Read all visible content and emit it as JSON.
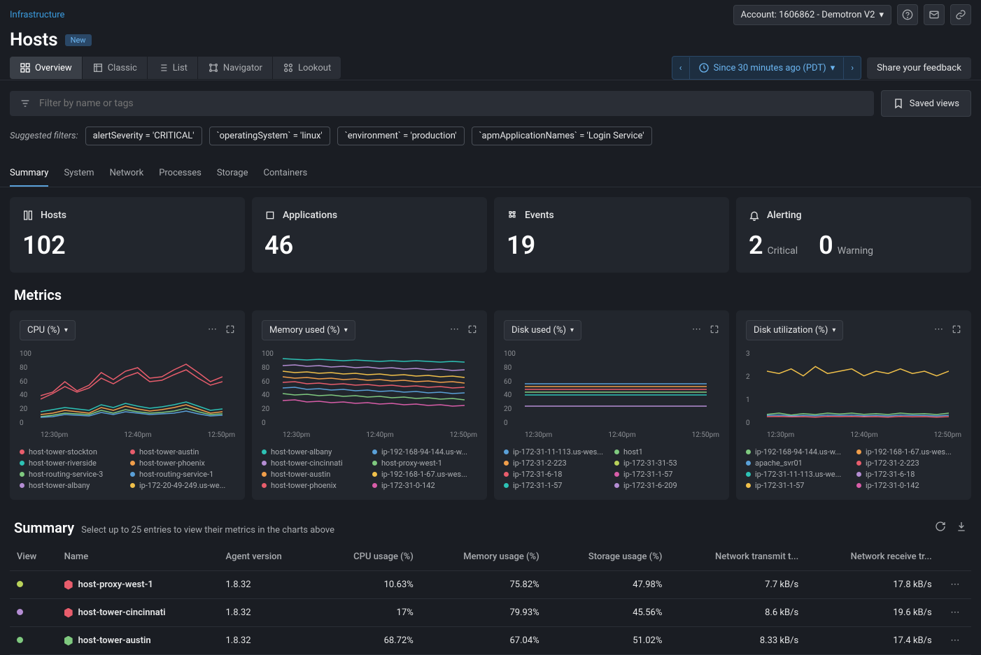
{
  "breadcrumb": "Infrastructure",
  "page_title": "Hosts",
  "new_badge": "New",
  "account": "Account: 1606862 - Demotron V2",
  "nav": [
    {
      "label": "Overview",
      "active": true
    },
    {
      "label": "Classic"
    },
    {
      "label": "List"
    },
    {
      "label": "Navigator"
    },
    {
      "label": "Lookout"
    }
  ],
  "time_range": "Since 30 minutes ago (PDT)",
  "feedback": "Share your feedback",
  "filter_placeholder": "Filter by name or tags",
  "saved_views": "Saved views",
  "suggested_label": "Suggested filters:",
  "suggested": [
    "alertSeverity = 'CRITICAL'",
    "`operatingSystem` = 'linux'",
    "`environment` = 'production'",
    "`apmApplicationNames` = 'Login Service'"
  ],
  "sub_tabs": [
    "Summary",
    "System",
    "Network",
    "Processes",
    "Storage",
    "Containers"
  ],
  "cards": [
    {
      "icon": "hosts",
      "title": "Hosts",
      "value": "102"
    },
    {
      "icon": "apps",
      "title": "Applications",
      "value": "46"
    },
    {
      "icon": "events",
      "title": "Events",
      "value": "19"
    },
    {
      "icon": "alerting",
      "title": "Alerting",
      "split": [
        {
          "num": "2",
          "lbl": "Critical"
        },
        {
          "num": "0",
          "lbl": "Warning"
        }
      ]
    }
  ],
  "metrics_title": "Metrics",
  "x_ticks": [
    "12:30pm",
    "12:40pm",
    "12:50pm"
  ],
  "metrics": [
    {
      "dropdown": "CPU (%)",
      "y_ticks": [
        "100",
        "80",
        "60",
        "40",
        "20",
        "0"
      ],
      "ylim": [
        0,
        100
      ],
      "series": [
        {
          "color": "#e85d6c",
          "pts": [
            35,
            40,
            55,
            42,
            50,
            68,
            58,
            70,
            75,
            60,
            62,
            72,
            80,
            68,
            55,
            62
          ],
          "name": "host-tower-stockton"
        },
        {
          "color": "#e85d6c",
          "pts": [
            30,
            38,
            48,
            40,
            46,
            60,
            52,
            62,
            68,
            55,
            57,
            65,
            72,
            60,
            50,
            55
          ],
          "name": "host-tower-austin"
        },
        {
          "color": "#2dc2b5",
          "pts": [
            12,
            15,
            18,
            16,
            14,
            22,
            18,
            24,
            20,
            17,
            19,
            22,
            26,
            20,
            14,
            16
          ],
          "name": "host-tower-riverside"
        },
        {
          "color": "#f09e4a",
          "pts": [
            8,
            10,
            14,
            12,
            10,
            18,
            14,
            20,
            16,
            13,
            15,
            18,
            22,
            16,
            10,
            12
          ],
          "name": "host-tower-phoenix"
        },
        {
          "color": "#7fc97f",
          "pts": [
            5,
            7,
            10,
            9,
            8,
            14,
            10,
            15,
            12,
            10,
            11,
            13,
            17,
            12,
            8,
            9
          ],
          "name": "host-routing-service-3"
        },
        {
          "color": "#5aa0d8",
          "pts": [
            4,
            5,
            8,
            7,
            6,
            11,
            8,
            12,
            10,
            8,
            9,
            10,
            13,
            9,
            6,
            7
          ],
          "name": "host-routing-service-1"
        }
      ],
      "legend": [
        {
          "c": "#e85d6c",
          "n": "host-tower-stockton"
        },
        {
          "c": "#e85d6c",
          "n": "host-tower-austin"
        },
        {
          "c": "#2dc2b5",
          "n": "host-tower-riverside"
        },
        {
          "c": "#f09e4a",
          "n": "host-tower-phoenix"
        },
        {
          "c": "#7fc97f",
          "n": "host-routing-service-3"
        },
        {
          "c": "#5aa0d8",
          "n": "host-routing-service-1"
        },
        {
          "c": "#b48dd3",
          "n": "host-tower-albany"
        },
        {
          "c": "#f0c04a",
          "n": "ip-172-20-49-249.us-we..."
        }
      ]
    },
    {
      "dropdown": "Memory used (%)",
      "y_ticks": [
        "100",
        "80",
        "60",
        "40",
        "20",
        "0"
      ],
      "ylim": [
        0,
        100
      ],
      "series": [
        {
          "color": "#2dc2b5",
          "pts": [
            88,
            87,
            86,
            87,
            86,
            85,
            86,
            85,
            84,
            85,
            84,
            85,
            84,
            83,
            84,
            83
          ]
        },
        {
          "color": "#b48dd3",
          "pts": [
            78,
            79,
            77,
            78,
            76,
            77,
            75,
            76,
            74,
            75,
            73,
            74,
            72,
            73,
            71,
            72
          ]
        },
        {
          "color": "#f0c04a",
          "pts": [
            70,
            68,
            69,
            67,
            68,
            66,
            67,
            65,
            66,
            64,
            65,
            63,
            64,
            62,
            63,
            61
          ]
        },
        {
          "color": "#f09e4a",
          "pts": [
            62,
            60,
            61,
            59,
            60,
            58,
            59,
            57,
            58,
            56,
            57,
            55,
            56,
            54,
            55,
            53
          ]
        },
        {
          "color": "#e85d6c",
          "pts": [
            54,
            55,
            52,
            53,
            51,
            52,
            50,
            51,
            49,
            50,
            48,
            49,
            47,
            48,
            46,
            47
          ]
        },
        {
          "color": "#5aa0d8",
          "pts": [
            46,
            47,
            44,
            45,
            43,
            44,
            42,
            43,
            41,
            42,
            40,
            41,
            39,
            40,
            38,
            39
          ]
        },
        {
          "color": "#7fc97f",
          "pts": [
            38,
            36,
            37,
            35,
            36,
            34,
            35,
            33,
            34,
            32,
            33,
            31,
            32,
            30,
            31,
            29
          ]
        },
        {
          "color": "#d85da8",
          "pts": [
            28,
            29,
            26,
            27,
            25,
            26,
            24,
            25,
            23,
            24,
            22,
            23,
            21,
            22,
            20,
            21
          ]
        }
      ],
      "legend": [
        {
          "c": "#2dc2b5",
          "n": "host-tower-albany"
        },
        {
          "c": "#5aa0d8",
          "n": "ip-192-168-94-144.us-w..."
        },
        {
          "c": "#b48dd3",
          "n": "host-tower-cincinnati"
        },
        {
          "c": "#7fc97f",
          "n": "host-proxy-west-1"
        },
        {
          "c": "#f09e4a",
          "n": "host-tower-austin"
        },
        {
          "c": "#f0c04a",
          "n": "ip-192-168-1-67.us-wes..."
        },
        {
          "c": "#e85d6c",
          "n": "host-tower-phoenix"
        },
        {
          "c": "#d85da8",
          "n": "ip-172-31-0-142"
        }
      ]
    },
    {
      "dropdown": "Disk used (%)",
      "y_ticks": [
        "100",
        "80",
        "60",
        "40",
        "20",
        "0"
      ],
      "ylim": [
        0,
        100
      ],
      "series": [
        {
          "color": "#5aa0d8",
          "pts": [
            52,
            52,
            52,
            52,
            52,
            52,
            52,
            52,
            52,
            52,
            52,
            52,
            52,
            52,
            52,
            52
          ]
        },
        {
          "color": "#f09e4a",
          "pts": [
            48,
            48,
            48,
            48,
            48,
            48,
            48,
            48,
            48,
            48,
            48,
            48,
            48,
            48,
            48,
            48
          ]
        },
        {
          "color": "#e85d6c",
          "pts": [
            44,
            44,
            44,
            44,
            44,
            44,
            44,
            44,
            44,
            44,
            44,
            44,
            44,
            44,
            44,
            44
          ]
        },
        {
          "color": "#7fc97f",
          "pts": [
            40,
            40,
            40,
            40,
            40,
            40,
            40,
            40,
            40,
            40,
            40,
            40,
            40,
            40,
            40,
            40
          ]
        },
        {
          "color": "#2dc2b5",
          "pts": [
            36,
            36,
            36,
            36,
            36,
            36,
            36,
            36,
            36,
            36,
            36,
            36,
            36,
            36,
            36,
            36
          ]
        },
        {
          "color": "#b48dd3",
          "pts": [
            20,
            20,
            20,
            20,
            20,
            20,
            20,
            20,
            20,
            20,
            20,
            20,
            20,
            20,
            20,
            20
          ]
        }
      ],
      "legend": [
        {
          "c": "#5aa0d8",
          "n": "ip-172-31-11-113.us-wes..."
        },
        {
          "c": "#7fc97f",
          "n": "host1"
        },
        {
          "c": "#f09e4a",
          "n": "ip-172-31-2-223"
        },
        {
          "c": "#b9d25a",
          "n": "ip-172-31-31-53"
        },
        {
          "c": "#e85d6c",
          "n": "ip-172-31-6-18"
        },
        {
          "c": "#d85da8",
          "n": "ip-172-31-1-57"
        },
        {
          "c": "#2dc2b5",
          "n": "ip-172-31-1-57"
        },
        {
          "c": "#b48dd3",
          "n": "ip-172-31-6-209"
        }
      ]
    },
    {
      "dropdown": "Disk utilization (%)",
      "y_ticks": [
        "3",
        "2",
        "1",
        "0"
      ],
      "ylim": [
        0,
        3
      ],
      "series": [
        {
          "color": "#f0c04a",
          "pts": [
            2.1,
            2.0,
            2.2,
            1.9,
            2.3,
            2.0,
            2.1,
            2.2,
            1.9,
            2.1,
            2.0,
            2.2,
            2.0,
            2.1,
            1.9,
            2.1
          ]
        },
        {
          "color": "#7fc97f",
          "pts": [
            0.25,
            0.3,
            0.22,
            0.28,
            0.24,
            0.3,
            0.26,
            0.3,
            0.25,
            0.28,
            0.24,
            0.3,
            0.26,
            0.28,
            0.24,
            0.3
          ]
        },
        {
          "color": "#5aa0d8",
          "pts": [
            0.2,
            0.22,
            0.18,
            0.2,
            0.19,
            0.22,
            0.2,
            0.22,
            0.19,
            0.2,
            0.18,
            0.22,
            0.2,
            0.2,
            0.18,
            0.21
          ]
        },
        {
          "color": "#e85d6c",
          "pts": [
            0.15,
            0.16,
            0.14,
            0.15,
            0.13,
            0.16,
            0.15,
            0.16,
            0.14,
            0.15,
            0.13,
            0.16,
            0.14,
            0.15,
            0.13,
            0.15
          ]
        }
      ],
      "legend": [
        {
          "c": "#7fc97f",
          "n": "ip-192-168-94-144.us-w..."
        },
        {
          "c": "#f09e4a",
          "n": "ip-192-168-1-67.us-wes..."
        },
        {
          "c": "#5aa0d8",
          "n": "apache_svr01"
        },
        {
          "c": "#e85d6c",
          "n": "ip-172-31-2-223"
        },
        {
          "c": "#2dc2b5",
          "n": "ip-172-31-11-113.us-we..."
        },
        {
          "c": "#b48dd3",
          "n": "ip-172-31-6-18"
        },
        {
          "c": "#f0c04a",
          "n": "ip-172-31-1-57"
        },
        {
          "c": "#d85da8",
          "n": "ip-172-31-0-142"
        }
      ]
    }
  ],
  "summary": {
    "title": "Summary",
    "subtitle": "Select up to 25 entries to view their metrics in the charts above",
    "columns": [
      "View",
      "Name",
      "Agent version",
      "CPU usage (%)",
      "Memory usage (%)",
      "Storage usage (%)",
      "Network transmit t...",
      "Network receive tr...",
      ""
    ],
    "rows": [
      {
        "dot": "#b9d25a",
        "hex": "#e85d6c",
        "name": "host-proxy-west-1",
        "agent": "1.8.32",
        "cpu": "10.63%",
        "mem": "75.82%",
        "stor": "47.98%",
        "tx": "7.7 kB/s",
        "rx": "17.8 kB/s"
      },
      {
        "dot": "#b48dd3",
        "hex": "#e85d6c",
        "name": "host-tower-cincinnati",
        "agent": "1.8.32",
        "cpu": "17%",
        "mem": "79.93%",
        "stor": "45.56%",
        "tx": "8.6 kB/s",
        "rx": "19.6 kB/s"
      },
      {
        "dot": "#7fc97f",
        "hex": "#7fc97f",
        "name": "host-tower-austin",
        "agent": "1.8.32",
        "cpu": "68.72%",
        "mem": "67.04%",
        "stor": "51.02%",
        "tx": "8.33 kB/s",
        "rx": "17.4 kB/s"
      }
    ]
  }
}
